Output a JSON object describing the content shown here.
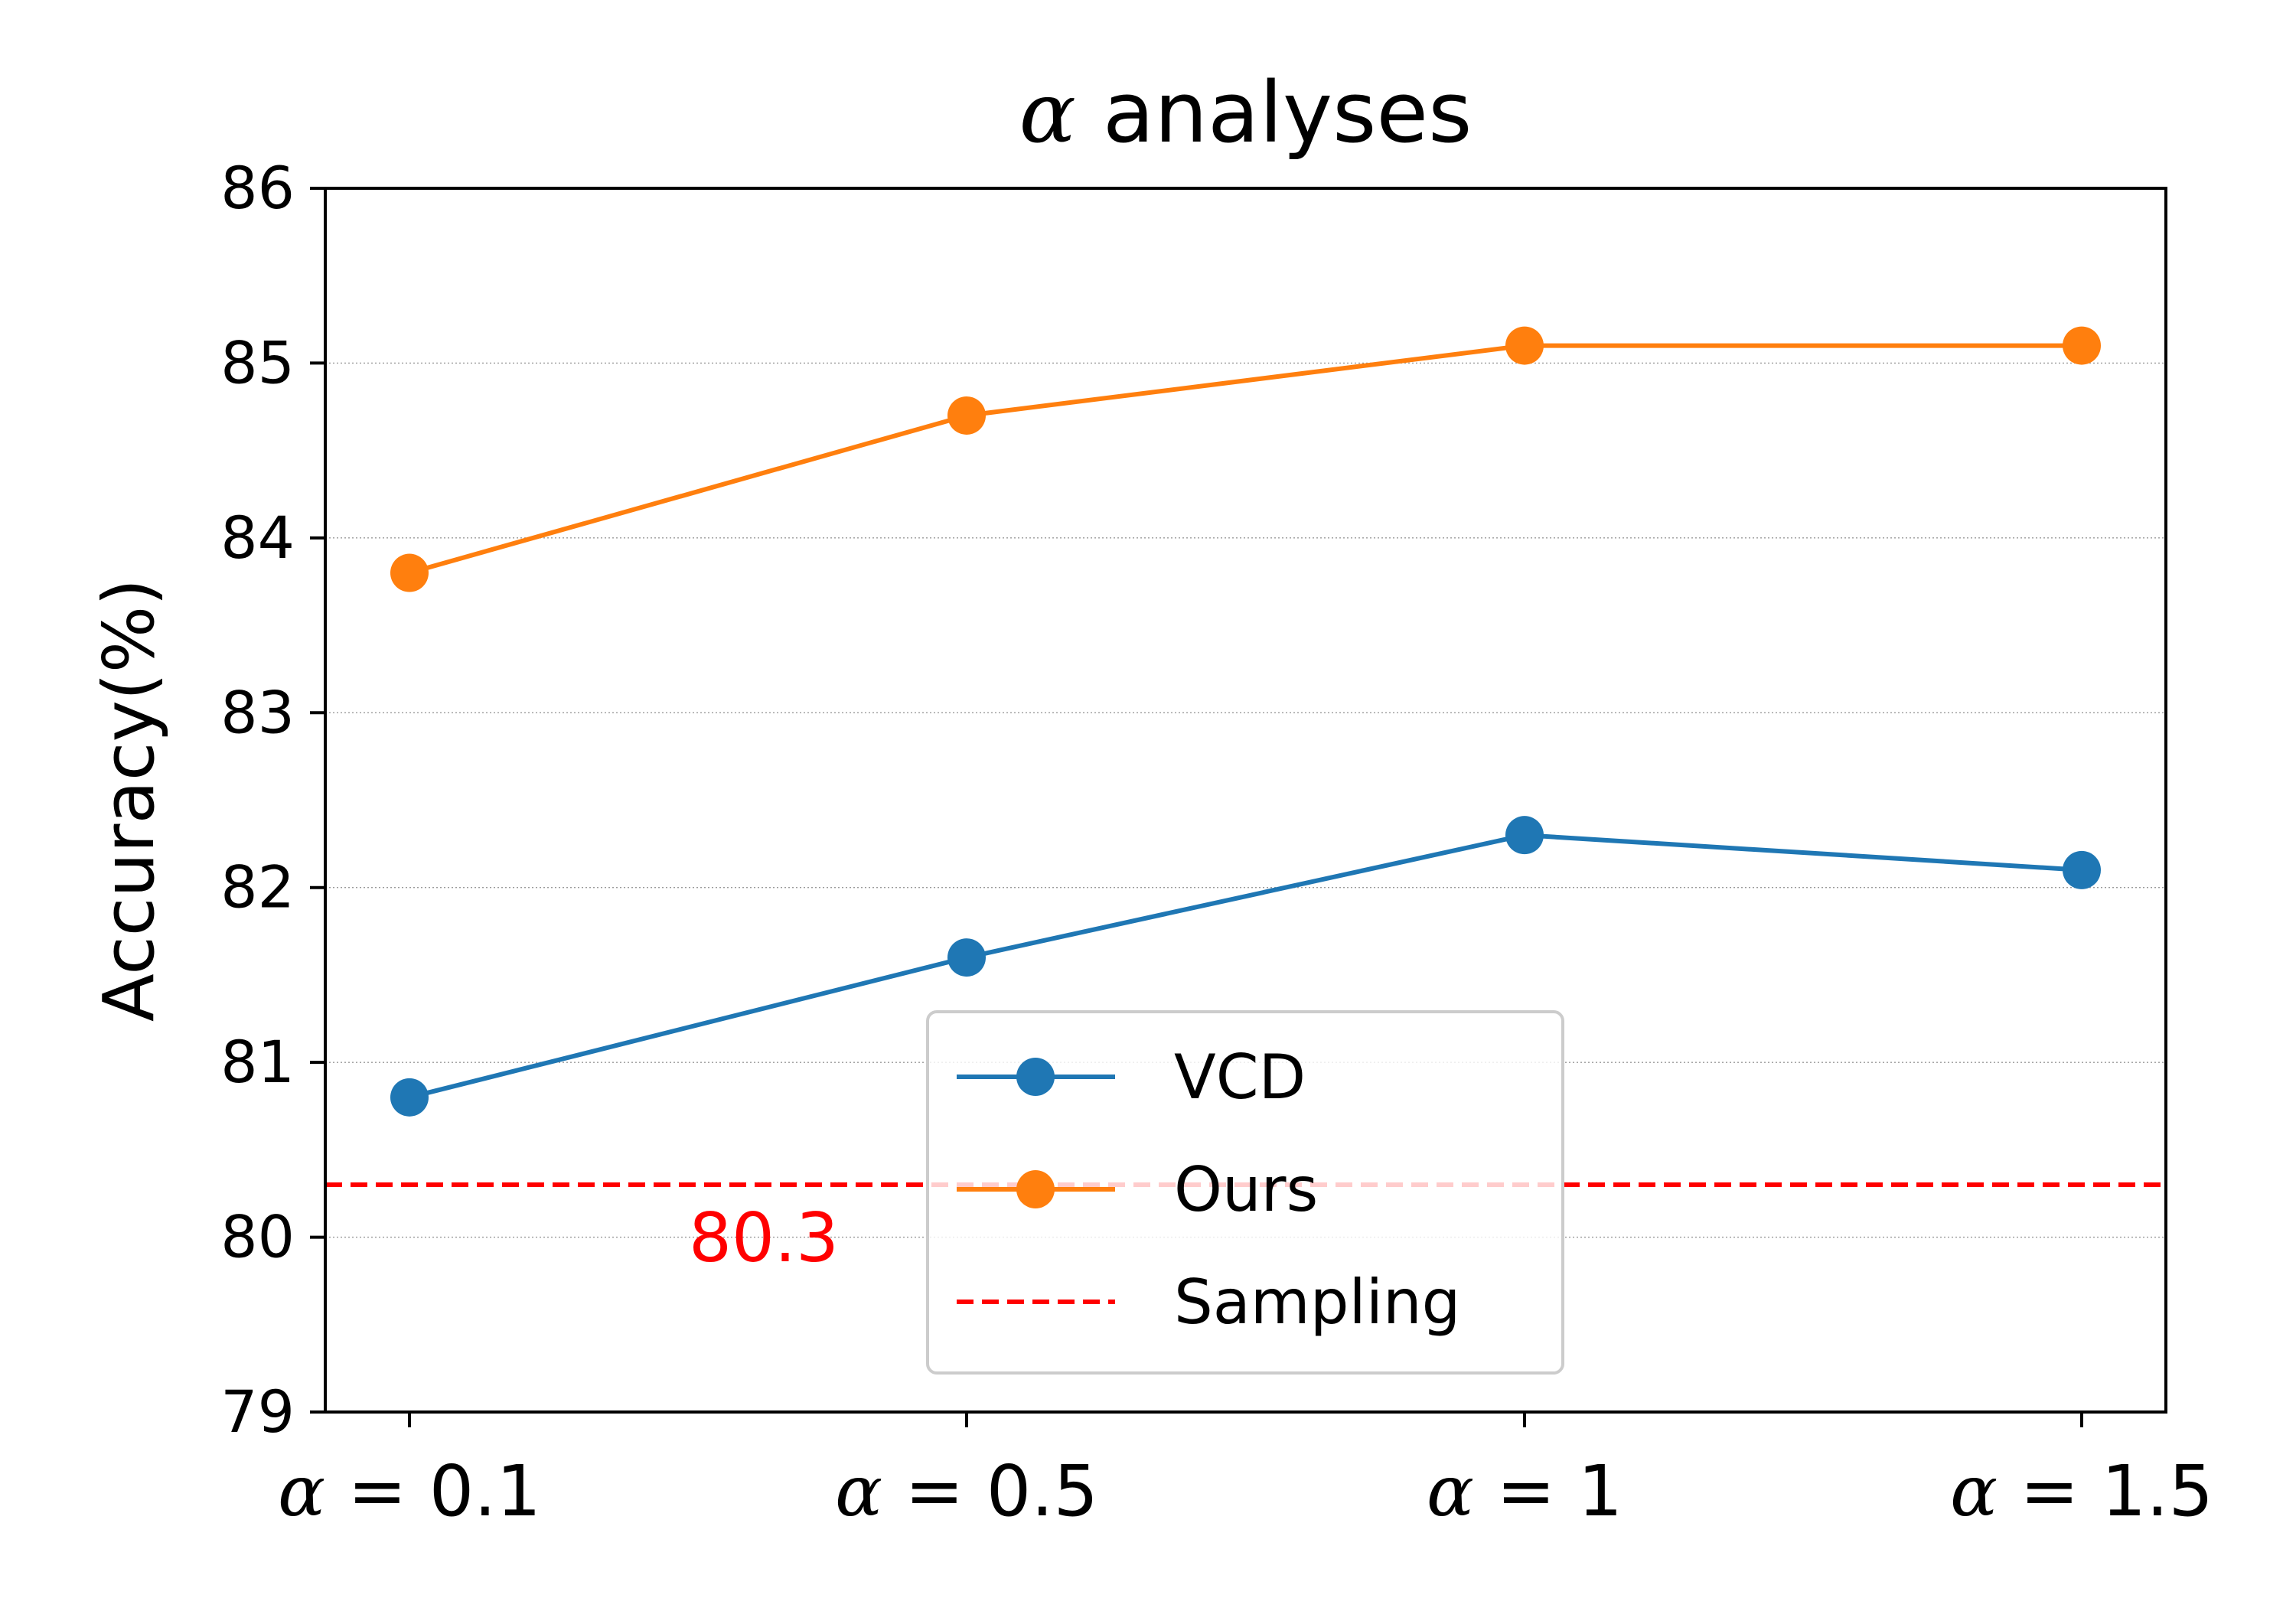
{
  "chart_data": {
    "type": "line",
    "title": "α analyses",
    "title_symbol": "α",
    "title_text": " analyses",
    "xlabel": "",
    "ylabel": "Accuracy(%)",
    "categories": [
      "α = 0.1",
      "α = 0.5",
      "α = 1",
      "α = 1.5"
    ],
    "category_symbol": "α",
    "category_values": [
      "0.1",
      "0.5",
      "1",
      "1.5"
    ],
    "ylim": [
      79,
      86
    ],
    "yticks": [
      79,
      80,
      81,
      82,
      83,
      84,
      85,
      86
    ],
    "grid": "horizontal dotted",
    "series": [
      {
        "name": "VCD",
        "values": [
          80.8,
          81.6,
          82.3,
          82.1
        ],
        "color": "#1f77b4",
        "marker": "circle"
      },
      {
        "name": "Ours",
        "values": [
          83.8,
          84.7,
          85.1,
          85.1
        ],
        "color": "#ff7f0e",
        "marker": "circle"
      }
    ],
    "reference_line": {
      "name": "Sampling",
      "value": 80.3,
      "label": "80.3",
      "color": "#ff0000",
      "style": "dashed"
    },
    "legend": {
      "placement": "lower-center",
      "entries": [
        "VCD",
        "Ours",
        "Sampling"
      ]
    }
  }
}
